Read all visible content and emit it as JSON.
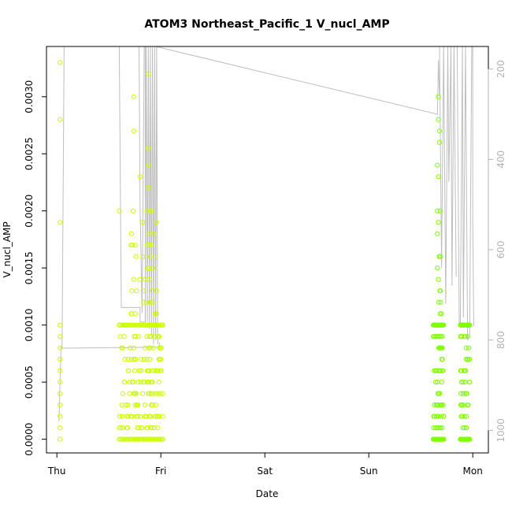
{
  "chart_data": {
    "type": "scatter",
    "title": "ATOM3 Northeast_Pacific_1 V_nucl_AMP",
    "xlabel": "Date",
    "ylabel": "V_nucl_AMP",
    "x_ticks": [
      "Thu",
      "Fri",
      "Sat",
      "Sun",
      "Mon"
    ],
    "x_tick_days": [
      0,
      1,
      2,
      3,
      4
    ],
    "xlim_days": [
      -0.1,
      4.15
    ],
    "y_ticks": [
      "0.0000",
      "0.0005",
      "0.0010",
      "0.0015",
      "0.0020",
      "0.0025",
      "0.0030"
    ],
    "y_tick_values": [
      0,
      0.0005,
      0.001,
      0.0015,
      0.002,
      0.0025,
      0.003
    ],
    "ylim": [
      -0.00012,
      0.00344
    ],
    "y2_ticks": [
      "200",
      "400",
      "600",
      "800",
      "1000"
    ],
    "y2_tick_values": [
      200,
      400,
      600,
      800,
      1000
    ],
    "y2lim": [
      1050,
      150
    ],
    "point_color_early": "#ccff00",
    "point_color_late": "#80ff00",
    "line_color": "#bebebe",
    "grid": false,
    "series": [
      {
        "values": [
          {
            "x": 0.03,
            "y": 0.0033
          },
          {
            "x": 0.03,
            "y": 0.0028
          },
          {
            "x": 0.03,
            "y": 0.0019
          },
          {
            "x": 0.03,
            "y": 0.001
          },
          {
            "x": 0.03,
            "y": 0.0009
          },
          {
            "x": 0.03,
            "y": 0.0008
          },
          {
            "x": 0.03,
            "y": 0.0007
          },
          {
            "x": 0.03,
            "y": 0.0006
          },
          {
            "x": 0.03,
            "y": 0.0005
          },
          {
            "x": 0.03,
            "y": 0.0004
          },
          {
            "x": 0.03,
            "y": 0.0003
          },
          {
            "x": 0.03,
            "y": 0.0002
          },
          {
            "x": 0.03,
            "y": 0.0001
          },
          {
            "x": 0.03,
            "y": 0.0
          },
          {
            "x": 0.6,
            "y": 0.002
          },
          {
            "x": 0.74,
            "y": 0.003
          },
          {
            "x": 0.74,
            "y": 0.0027
          },
          {
            "x": 0.8,
            "y": 0.0023
          },
          {
            "x": 0.88,
            "y": 0.0032
          },
          {
            "x": 0.88,
            "y": 0.00255
          },
          {
            "x": 0.88,
            "y": 0.0024
          },
          {
            "x": 0.88,
            "y": 0.0022
          },
          {
            "x": 0.9,
            "y": 0.0001
          },
          {
            "x": 0.95,
            "y": 0.0004
          },
          {
            "x": 0.95,
            "y": 0.0002
          },
          {
            "x": 3.67,
            "y": 0.003
          },
          {
            "x": 3.67,
            "y": 0.0028
          },
          {
            "x": 3.68,
            "y": 0.0027
          },
          {
            "x": 3.68,
            "y": 0.0026
          },
          {
            "x": 3.66,
            "y": 0.0024
          },
          {
            "x": 3.67,
            "y": 0.0023
          },
          {
            "x": 3.66,
            "y": 0.002
          },
          {
            "x": 3.67,
            "y": 0.0019
          },
          {
            "x": 3.66,
            "y": 0.0018
          },
          {
            "x": 3.66,
            "y": 0.0015
          },
          {
            "x": 3.67,
            "y": 0.0014
          },
          {
            "x": 3.72,
            "y": 0.0002
          }
        ]
      }
    ]
  }
}
